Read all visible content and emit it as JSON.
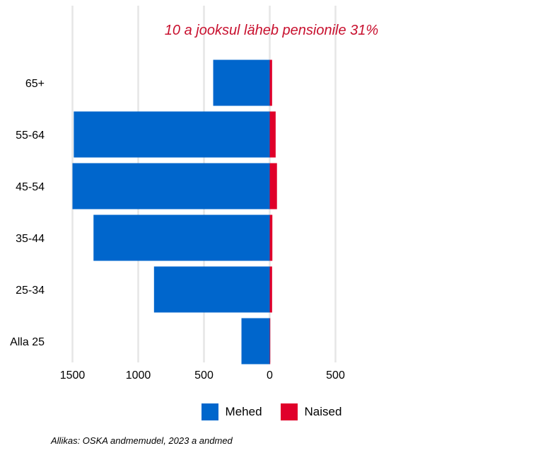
{
  "chart_data": {
    "type": "bar",
    "orientation": "horizontal",
    "stacked": true,
    "title": "",
    "annotation": "10 a jooksul läheb pensionile 31%",
    "xlabel": "",
    "ylabel": "",
    "categories": [
      "65+",
      "55-64",
      "45-54",
      "35-44",
      "25-34",
      "Alla 25"
    ],
    "series": [
      {
        "name": "Mehed",
        "color": "#0066cc",
        "values": [
          -430,
          -1490,
          -1500,
          -1340,
          -880,
          -215
        ]
      },
      {
        "name": "Naised",
        "color": "#e0002a",
        "values": [
          18,
          45,
          55,
          20,
          18,
          4
        ]
      }
    ],
    "xlim": [
      -1550,
      830
    ],
    "xticks": [
      -1500,
      -1000,
      -500,
      0,
      500
    ],
    "xtick_labels": [
      "1500",
      "1000",
      "500",
      "0",
      "500"
    ],
    "grid": "vertical",
    "legend": "bottom",
    "source": "Allikas: OSKA andmemudel, 2023 a andmed"
  }
}
